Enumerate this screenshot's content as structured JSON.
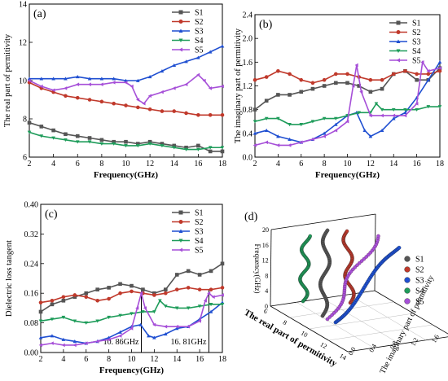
{
  "colors": {
    "S1": "#555555",
    "S2": "#c0392b",
    "S3": "#1f4fd1",
    "S4": "#1e9c5a",
    "S5": "#a64fd8"
  },
  "chart_data": [
    {
      "panel": "(a)",
      "type": "line",
      "xlabel": "Frequency(GHz)",
      "ylabel": "The real part of permitivity",
      "xlim": [
        2,
        18
      ],
      "ylim": [
        6,
        14
      ],
      "xticks": [
        "2",
        "4",
        "6",
        "8",
        "10",
        "12",
        "14",
        "16",
        "18"
      ],
      "yticks": [
        "6",
        "8",
        "10",
        "12",
        "14"
      ],
      "legend_position": "top-right",
      "series": [
        {
          "name": "S1",
          "x": [
            2,
            3,
            4,
            5,
            6,
            7,
            8,
            9,
            10,
            11,
            12,
            13,
            14,
            15,
            16,
            17,
            18
          ],
          "values": [
            7.8,
            7.6,
            7.4,
            7.2,
            7.1,
            7.0,
            6.9,
            6.8,
            6.8,
            6.7,
            6.8,
            6.7,
            6.6,
            6.5,
            6.6,
            6.3,
            6.3
          ]
        },
        {
          "name": "S2",
          "x": [
            2,
            3,
            4,
            5,
            6,
            7,
            8,
            9,
            10,
            11,
            12,
            13,
            14,
            15,
            16,
            17,
            18
          ],
          "values": [
            9.9,
            9.6,
            9.4,
            9.2,
            9.1,
            9.0,
            8.9,
            8.8,
            8.7,
            8.6,
            8.5,
            8.4,
            8.4,
            8.3,
            8.2,
            8.2,
            8.2
          ]
        },
        {
          "name": "S3",
          "x": [
            2,
            3,
            4,
            5,
            6,
            7,
            8,
            9,
            10,
            11,
            12,
            13,
            14,
            15,
            16,
            17,
            18
          ],
          "values": [
            10.1,
            10.1,
            10.1,
            10.1,
            10.2,
            10.1,
            10.1,
            10.1,
            10.0,
            10.0,
            10.2,
            10.5,
            10.8,
            11.0,
            11.2,
            11.5,
            11.8
          ]
        },
        {
          "name": "S4",
          "x": [
            2,
            3,
            4,
            5,
            6,
            7,
            8,
            9,
            10,
            11,
            12,
            13,
            14,
            15,
            16,
            17,
            18
          ],
          "values": [
            7.3,
            7.1,
            7.0,
            6.9,
            6.8,
            6.8,
            6.7,
            6.7,
            6.6,
            6.6,
            6.7,
            6.6,
            6.5,
            6.4,
            6.4,
            6.5,
            6.5
          ]
        },
        {
          "name": "S5",
          "x": [
            2,
            3,
            4,
            5,
            6,
            7,
            8,
            9,
            10,
            10.5,
            11,
            11.5,
            12,
            13,
            14,
            15,
            16,
            16.5,
            17,
            18
          ],
          "values": [
            10.0,
            9.7,
            9.5,
            9.6,
            9.8,
            9.8,
            9.8,
            9.9,
            9.9,
            9.7,
            9.0,
            8.8,
            9.2,
            9.4,
            9.6,
            9.8,
            10.3,
            10.0,
            9.6,
            9.7
          ]
        }
      ]
    },
    {
      "panel": "(b)",
      "type": "line",
      "xlabel": "Frequency(GHz)",
      "ylabel": "The imaginary part of permitivity",
      "xlim": [
        2,
        18
      ],
      "ylim": [
        0.0,
        2.4
      ],
      "xticks": [
        "2",
        "4",
        "6",
        "8",
        "10",
        "12",
        "14",
        "16",
        "18"
      ],
      "yticks": [
        "0.0",
        "0.4",
        "0.8",
        "1.2",
        "1.6",
        "2.0",
        "2.4"
      ],
      "legend_position": "top-right",
      "series": [
        {
          "name": "S1",
          "x": [
            2,
            3,
            4,
            5,
            6,
            7,
            8,
            9,
            10,
            11,
            12,
            13,
            14,
            15,
            16,
            17,
            18
          ],
          "values": [
            0.8,
            0.95,
            1.05,
            1.05,
            1.1,
            1.15,
            1.2,
            1.25,
            1.25,
            1.2,
            1.1,
            1.15,
            1.4,
            1.45,
            1.3,
            1.3,
            1.5
          ]
        },
        {
          "name": "S2",
          "x": [
            2,
            3,
            4,
            5,
            6,
            7,
            8,
            9,
            10,
            11,
            12,
            13,
            14,
            15,
            16,
            17,
            18
          ],
          "values": [
            1.3,
            1.35,
            1.45,
            1.4,
            1.3,
            1.25,
            1.3,
            1.4,
            1.4,
            1.35,
            1.3,
            1.3,
            1.4,
            1.45,
            1.4,
            1.4,
            1.45
          ]
        },
        {
          "name": "S3",
          "x": [
            2,
            3,
            4,
            5,
            6,
            7,
            8,
            9,
            10,
            10.8,
            11.5,
            12,
            13,
            14,
            15,
            16,
            17,
            18
          ],
          "values": [
            0.4,
            0.45,
            0.35,
            0.3,
            0.25,
            0.3,
            0.4,
            0.55,
            0.7,
            0.75,
            0.45,
            0.35,
            0.45,
            0.65,
            0.75,
            1.0,
            1.3,
            1.6
          ]
        },
        {
          "name": "S4",
          "x": [
            2,
            3,
            4,
            5,
            6,
            7,
            8,
            9,
            10,
            11,
            12,
            12.5,
            13,
            14,
            15,
            16,
            17,
            18
          ],
          "values": [
            0.6,
            0.65,
            0.65,
            0.55,
            0.55,
            0.6,
            0.65,
            0.65,
            0.7,
            0.75,
            0.75,
            0.9,
            0.8,
            0.8,
            0.8,
            0.8,
            0.85,
            0.85
          ]
        },
        {
          "name": "S5",
          "x": [
            2,
            3,
            4,
            5,
            6,
            7,
            8,
            9,
            10,
            10.5,
            10.8,
            11.2,
            12,
            13,
            14,
            15,
            16,
            16.5,
            17,
            18
          ],
          "values": [
            0.2,
            0.25,
            0.2,
            0.2,
            0.25,
            0.3,
            0.35,
            0.45,
            0.6,
            1.2,
            1.55,
            1.1,
            0.7,
            0.7,
            0.7,
            0.7,
            0.9,
            1.6,
            1.45,
            1.5
          ]
        }
      ]
    },
    {
      "panel": "(c)",
      "type": "line",
      "xlabel": "Frequency(GHz)",
      "ylabel": "Dielectric loss tangent",
      "xlim": [
        2,
        18
      ],
      "ylim": [
        0.0,
        0.4
      ],
      "xticks": [
        "2",
        "4",
        "6",
        "8",
        "10",
        "12",
        "14",
        "16",
        "18"
      ],
      "yticks": [
        "0.00",
        "0.08",
        "0.16",
        "0.24",
        "0.32",
        "0.40"
      ],
      "legend_position": "top-right",
      "annotations": [
        {
          "x": 10.86,
          "text": "10. 86GHz"
        },
        {
          "x": 16.81,
          "text": "16. 81GHz"
        }
      ],
      "series": [
        {
          "name": "S1",
          "x": [
            2,
            3,
            4,
            5,
            6,
            7,
            8,
            9,
            10,
            11,
            12,
            13,
            14,
            15,
            16,
            17,
            18
          ],
          "values": [
            0.11,
            0.13,
            0.14,
            0.15,
            0.16,
            0.17,
            0.175,
            0.185,
            0.18,
            0.17,
            0.16,
            0.17,
            0.21,
            0.22,
            0.21,
            0.22,
            0.24
          ]
        },
        {
          "name": "S2",
          "x": [
            2,
            3,
            4,
            5,
            6,
            7,
            8,
            9,
            10,
            11,
            12,
            13,
            14,
            15,
            16,
            17,
            18
          ],
          "values": [
            0.135,
            0.14,
            0.15,
            0.155,
            0.15,
            0.14,
            0.145,
            0.16,
            0.165,
            0.16,
            0.155,
            0.16,
            0.17,
            0.175,
            0.17,
            0.17,
            0.175
          ]
        },
        {
          "name": "S3",
          "x": [
            2,
            3,
            4,
            5,
            6,
            7,
            8,
            9,
            10,
            10.8,
            11.5,
            12,
            13,
            14,
            15,
            16,
            17,
            18
          ],
          "values": [
            0.04,
            0.045,
            0.035,
            0.03,
            0.025,
            0.03,
            0.04,
            0.055,
            0.07,
            0.075,
            0.045,
            0.04,
            0.05,
            0.065,
            0.07,
            0.09,
            0.11,
            0.135
          ]
        },
        {
          "name": "S4",
          "x": [
            2,
            3,
            4,
            5,
            6,
            7,
            8,
            9,
            10,
            11,
            12,
            12.5,
            13,
            14,
            15,
            16,
            17,
            18
          ],
          "values": [
            0.085,
            0.09,
            0.095,
            0.085,
            0.08,
            0.085,
            0.095,
            0.1,
            0.105,
            0.11,
            0.11,
            0.14,
            0.125,
            0.12,
            0.12,
            0.125,
            0.13,
            0.13
          ]
        },
        {
          "name": "S5",
          "x": [
            2,
            3,
            4,
            5,
            6,
            7,
            8,
            9,
            10,
            10.5,
            10.86,
            11.2,
            12,
            13,
            14,
            15,
            16,
            16.5,
            16.81,
            17.2,
            18
          ],
          "values": [
            0.02,
            0.025,
            0.02,
            0.02,
            0.025,
            0.03,
            0.035,
            0.045,
            0.065,
            0.12,
            0.16,
            0.12,
            0.075,
            0.07,
            0.07,
            0.07,
            0.085,
            0.14,
            0.16,
            0.15,
            0.155
          ]
        }
      ]
    },
    {
      "panel": "(d)",
      "type": "scatter",
      "xlabel": "The real part of permitivity",
      "ylabel": "The imaginary part of permitivity",
      "zlabel": "Frequency(GHz)",
      "xticks": [
        "6",
        "8",
        "10",
        "12",
        "14"
      ],
      "yticks": [
        "0.0",
        "0.4",
        "0.8",
        "1.2",
        "1.6",
        "2.0"
      ],
      "zticks": [
        "0",
        "4",
        "8",
        "12",
        "16",
        "20"
      ],
      "legend_position": "right",
      "series": [
        {
          "name": "S1"
        },
        {
          "name": "S2"
        },
        {
          "name": "S3"
        },
        {
          "name": "S4"
        },
        {
          "name": "S5"
        }
      ]
    }
  ]
}
